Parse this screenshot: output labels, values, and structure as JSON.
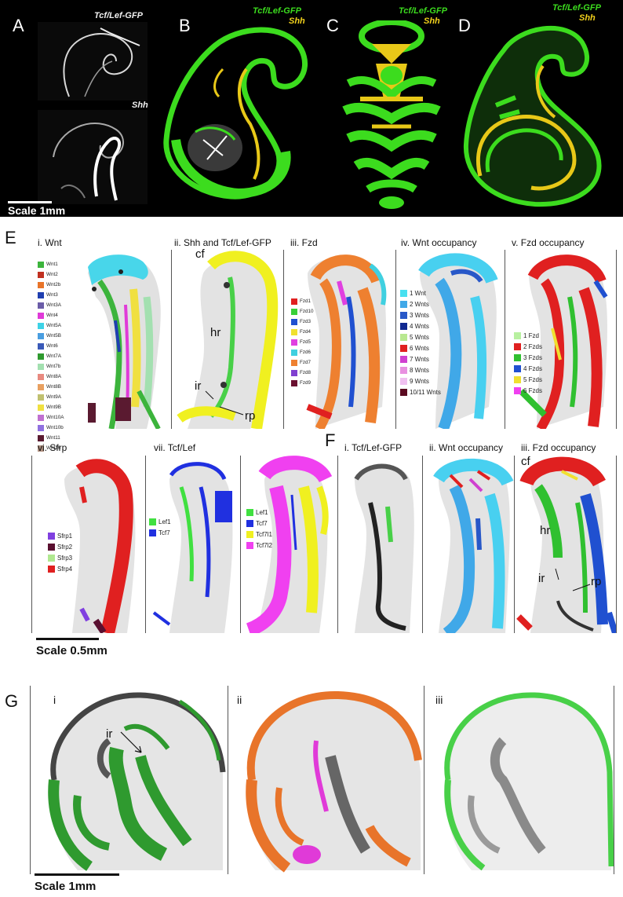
{
  "top": {
    "letters": [
      "A",
      "B",
      "C",
      "D"
    ],
    "a_top_label": "Tcf/Lef-GFP",
    "a_bottom_label": "Shh",
    "gfp_label": "Tcf/Lef-GFP",
    "shh_label": "Shh",
    "scale": "Scale 1mm"
  },
  "sectionE": {
    "letter": "E",
    "titles": [
      "i. Wnt",
      "ii. Shh and Tcf/Lef-GFP",
      "iii. Fzd",
      "iv. Wnt occupancy",
      "v. Fzd occupancy"
    ],
    "wnt_legend": [
      {
        "label": "Wnt1",
        "color": "#3cb43c"
      },
      {
        "label": "Wnt2",
        "color": "#c03020"
      },
      {
        "label": "Wnt2b",
        "color": "#e8742a"
      },
      {
        "label": "Wnt3",
        "color": "#1f3fb0"
      },
      {
        "label": "Wnt3A",
        "color": "#6b5da8"
      },
      {
        "label": "Wnt4",
        "color": "#e03ad8"
      },
      {
        "label": "Wnt5A",
        "color": "#3ed2e6"
      },
      {
        "label": "Wnt5B",
        "color": "#4a9ee0"
      },
      {
        "label": "Wnt6",
        "color": "#3a5ab8"
      },
      {
        "label": "Wnt7A",
        "color": "#2f9a2f"
      },
      {
        "label": "Wnt7b",
        "color": "#a3e0b0"
      },
      {
        "label": "Wnt8A",
        "color": "#e88a80"
      },
      {
        "label": "Wnt8B",
        "color": "#e8a060"
      },
      {
        "label": "Wnt9A",
        "color": "#c0c070"
      },
      {
        "label": "Wnt9B",
        "color": "#f0e040"
      },
      {
        "label": "Wnt10A",
        "color": "#c070d0"
      },
      {
        "label": "Wnt10b",
        "color": "#9070e0"
      },
      {
        "label": "Wnt11",
        "color": "#5a1a30"
      },
      {
        "label": "Wnt16",
        "color": "#b09080"
      }
    ],
    "labels_ii": {
      "cf": "cf",
      "hr": "hr",
      "ir": "ir",
      "rp": "rp"
    },
    "fzd_legend": [
      {
        "label": "Fzd1",
        "color": "#e02020"
      },
      {
        "label": "Fzd10",
        "color": "#38d038"
      },
      {
        "label": "Fzd3",
        "color": "#2050d0"
      },
      {
        "label": "Fzd4",
        "color": "#f0e030"
      },
      {
        "label": "Fzd5",
        "color": "#e040e0"
      },
      {
        "label": "Fzd6",
        "color": "#40d0e0"
      },
      {
        "label": "Fzd7",
        "color": "#ee8030"
      },
      {
        "label": "Fzd8",
        "color": "#8040d0"
      },
      {
        "label": "Fzd9",
        "color": "#6a1030"
      }
    ],
    "wnt_occ_legend": [
      {
        "label": "1 Wnt",
        "color": "#48e0f0"
      },
      {
        "label": "2 Wnts",
        "color": "#40a8e8"
      },
      {
        "label": "3 Wnts",
        "color": "#2858c8"
      },
      {
        "label": "4 Wnts",
        "color": "#102890"
      },
      {
        "label": "5 Wnts",
        "color": "#b8e890"
      },
      {
        "label": "6 Wnts",
        "color": "#e02020"
      },
      {
        "label": "7 Wnts",
        "color": "#d040d0"
      },
      {
        "label": "8 Wnts",
        "color": "#e890e0"
      },
      {
        "label": "9 Wnts",
        "color": "#f0c0f0"
      },
      {
        "label": "10/11 Wnts",
        "color": "#5a0a20"
      }
    ],
    "fzd_occ_legend": [
      {
        "label": "1 Fzd",
        "color": "#b8f0a0"
      },
      {
        "label": "2 Fzds",
        "color": "#e02020"
      },
      {
        "label": "3 Fzds",
        "color": "#30c030"
      },
      {
        "label": "4 Fzds",
        "color": "#2050d0"
      },
      {
        "label": "5 Fzds",
        "color": "#f0e030"
      },
      {
        "label": "6 Fzds",
        "color": "#f040f0"
      }
    ],
    "row2_titles": [
      "vi. Sfrp",
      "vii. Tcf/Lef"
    ],
    "sfrp_legend": [
      {
        "label": "Sfrp1",
        "color": "#8040e0"
      },
      {
        "label": "Sfrp2",
        "color": "#5a1030"
      },
      {
        "label": "Sfrp3",
        "color": "#b0e890"
      },
      {
        "label": "Sfrp4",
        "color": "#e02020"
      }
    ],
    "tcf_legend_a": [
      {
        "label": "Lef1",
        "color": "#40e040"
      },
      {
        "label": "Tcf7",
        "color": "#2030e0"
      }
    ],
    "tcf_legend_b": [
      {
        "label": "Lef1",
        "color": "#40e040"
      },
      {
        "label": "Tcf7",
        "color": "#2030e0"
      },
      {
        "label": "Tcf7l1",
        "color": "#f0f020"
      },
      {
        "label": "Tcf7l2",
        "color": "#f040f0"
      }
    ],
    "scale": "Scale 0.5mm"
  },
  "sectionF": {
    "letter": "F",
    "titles": [
      "i. Tcf/Lef-GFP",
      "ii. Wnt occupancy",
      "iii. Fzd occupancy"
    ],
    "labels": {
      "cf": "cf",
      "hr": "hr",
      "ir": "ir",
      "rp": "rp"
    }
  },
  "sectionG": {
    "letter": "G",
    "panels": [
      "i",
      "ii",
      "iii"
    ],
    "ir": "ir",
    "scale": "Scale 1mm"
  }
}
